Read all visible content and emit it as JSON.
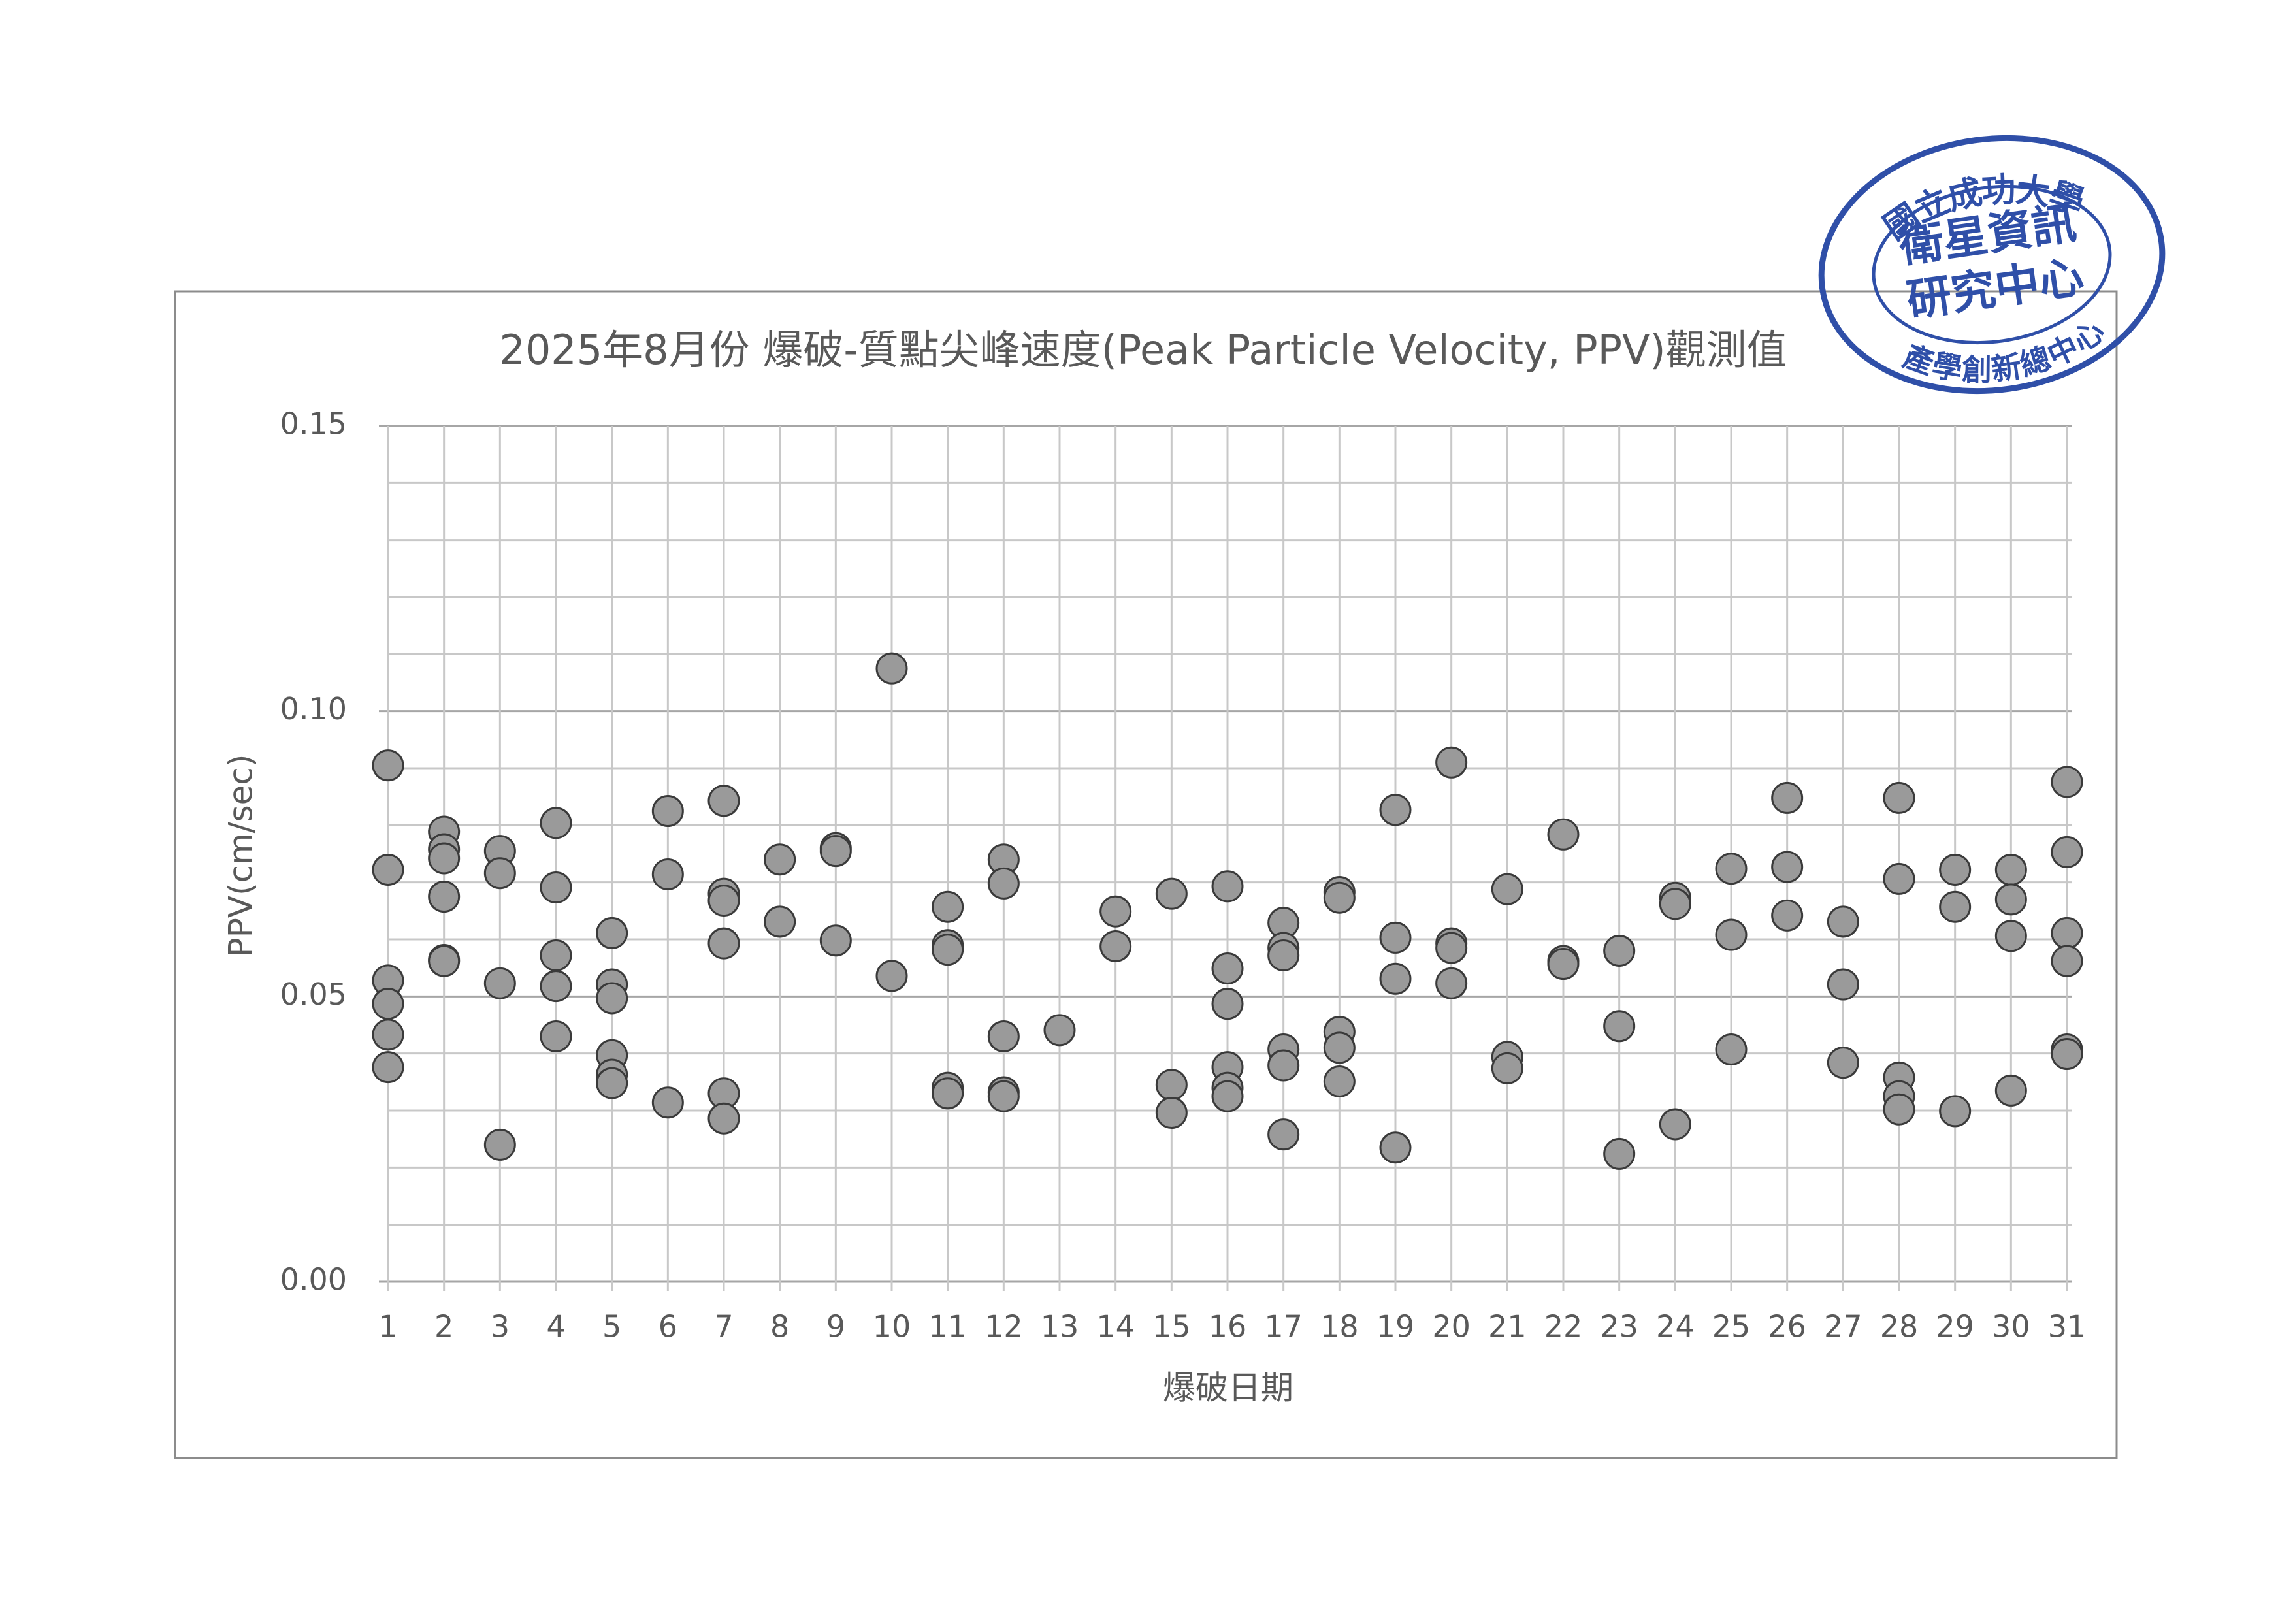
{
  "chart_data": {
    "type": "scatter",
    "title": "2025年8月份 爆破-質點尖峰速度(Peak Particle Velocity, PPV)觀測值",
    "x_label": "爆破日期",
    "y_label": "PPV(cm/sec)",
    "x": [
      1,
      1,
      1,
      1,
      1,
      1,
      2,
      2,
      2,
      2,
      2,
      2,
      3,
      3,
      3,
      3,
      4,
      4,
      4,
      4,
      4,
      5,
      5,
      5,
      5,
      5,
      5,
      6,
      6,
      6,
      7,
      7,
      7,
      7,
      7,
      7,
      8,
      8,
      9,
      9,
      9,
      10,
      10,
      11,
      11,
      11,
      11,
      11,
      12,
      12,
      12,
      12,
      12,
      13,
      14,
      14,
      15,
      15,
      15,
      16,
      16,
      16,
      16,
      16,
      16,
      17,
      17,
      17,
      17,
      17,
      17,
      18,
      18,
      18,
      18,
      18,
      19,
      19,
      19,
      19,
      20,
      20,
      20,
      20,
      21,
      21,
      21,
      22,
      22,
      22,
      23,
      23,
      23,
      24,
      24,
      24,
      25,
      25,
      25,
      26,
      26,
      26,
      27,
      27,
      27,
      28,
      28,
      28,
      28,
      28,
      29,
      29,
      29,
      30,
      30,
      30,
      30,
      31,
      31,
      31,
      31,
      31,
      31
    ],
    "values": [
      0.0905,
      0.0722,
      0.0528,
      0.0487,
      0.0433,
      0.0376,
      0.0789,
      0.0758,
      0.0742,
      0.0675,
      0.0564,
      0.0562,
      0.0755,
      0.0716,
      0.0523,
      0.024,
      0.0804,
      0.0691,
      0.0572,
      0.0518,
      0.043,
      0.0611,
      0.0521,
      0.0497,
      0.0397,
      0.0363,
      0.0348,
      0.0825,
      0.0714,
      0.0314,
      0.0843,
      0.068,
      0.0668,
      0.0593,
      0.033,
      0.0286,
      0.074,
      0.0631,
      0.076,
      0.0755,
      0.0598,
      0.1075,
      0.0536,
      0.0657,
      0.059,
      0.0582,
      0.034,
      0.033,
      0.074,
      0.0698,
      0.043,
      0.0332,
      0.0325,
      0.0441,
      0.0649,
      0.0588,
      0.068,
      0.0345,
      0.0296,
      0.0693,
      0.0549,
      0.0487,
      0.0376,
      0.034,
      0.0325,
      0.0629,
      0.0585,
      0.0572,
      0.0407,
      0.0379,
      0.0258,
      0.0683,
      0.0673,
      0.0438,
      0.041,
      0.0351,
      0.0827,
      0.0603,
      0.0531,
      0.0235,
      0.091,
      0.0593,
      0.0585,
      0.0523,
      0.0688,
      0.0394,
      0.0374,
      0.0784,
      0.0562,
      0.0557,
      0.058,
      0.0448,
      0.0224,
      0.0673,
      0.0662,
      0.0276,
      0.0724,
      0.0608,
      0.0407,
      0.0848,
      0.0727,
      0.0642,
      0.0631,
      0.0521,
      0.0384,
      0.0848,
      0.0706,
      0.0358,
      0.0325,
      0.0302,
      0.0722,
      0.0657,
      0.0299,
      0.0722,
      0.067,
      0.0606,
      0.0335,
      0.0876,
      0.0753,
      0.0611,
      0.0562,
      0.0407,
      0.0399
    ],
    "color": "#9a9a9a",
    "xlim": [
      1,
      31
    ],
    "xticks": [
      1,
      2,
      3,
      4,
      5,
      6,
      7,
      8,
      9,
      10,
      11,
      12,
      13,
      14,
      15,
      16,
      17,
      18,
      19,
      20,
      21,
      22,
      23,
      24,
      25,
      26,
      27,
      28,
      29,
      30,
      31
    ],
    "ylim": [
      0,
      0.15
    ],
    "yticks": [
      {
        "value": 0,
        "label": "0.00"
      },
      {
        "value": 0.05,
        "label": "0.05"
      },
      {
        "value": 0.1,
        "label": "0.10"
      },
      {
        "value": 0.15,
        "label": "0.15"
      }
    ],
    "yminorticks": [
      0.01,
      0.02,
      0.03,
      0.04,
      0.06,
      0.07,
      0.08,
      0.09,
      0.11,
      0.12,
      0.13,
      0.14
    ],
    "grid": true
  },
  "stamp": {
    "outer_top": "國立成功大學",
    "inner": [
      "衛星資訊",
      "研究中心"
    ],
    "outer_bottom": "產學創新總中心"
  }
}
